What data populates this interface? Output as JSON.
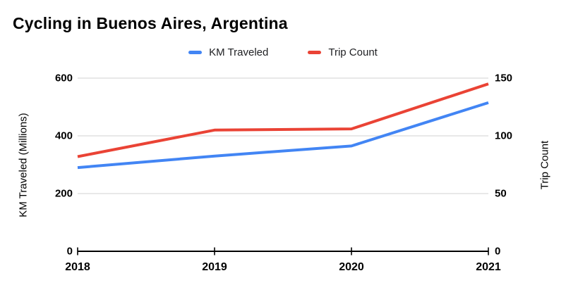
{
  "title": "Cycling in Buenos Aires, Argentina",
  "legend": [
    {
      "label": "KM Traveled",
      "color": "#4285F4"
    },
    {
      "label": "Trip Count",
      "color": "#EA4335"
    }
  ],
  "chart_data": {
    "type": "line",
    "x": [
      "2018",
      "2019",
      "2020",
      "2021"
    ],
    "series": [
      {
        "name": "KM Traveled",
        "axis": "left",
        "color": "#4285F4",
        "values": [
          290,
          330,
          365,
          515
        ]
      },
      {
        "name": "Trip Count",
        "axis": "right",
        "color": "#EA4335",
        "values": [
          82,
          105,
          106,
          145
        ]
      }
    ],
    "left_axis": {
      "label": "KM Traveled (Millions)",
      "ticks": [
        0,
        200,
        400,
        600
      ],
      "range": [
        0,
        600
      ]
    },
    "right_axis": {
      "label": "Trip Count",
      "ticks": [
        0,
        50,
        100,
        150
      ],
      "range": [
        0,
        150
      ]
    },
    "grid": "horizontal",
    "legend_position": "top",
    "colors": {
      "gridline": "#e0e0e0",
      "axis_line": "#000000",
      "label_text": "#000000"
    }
  }
}
